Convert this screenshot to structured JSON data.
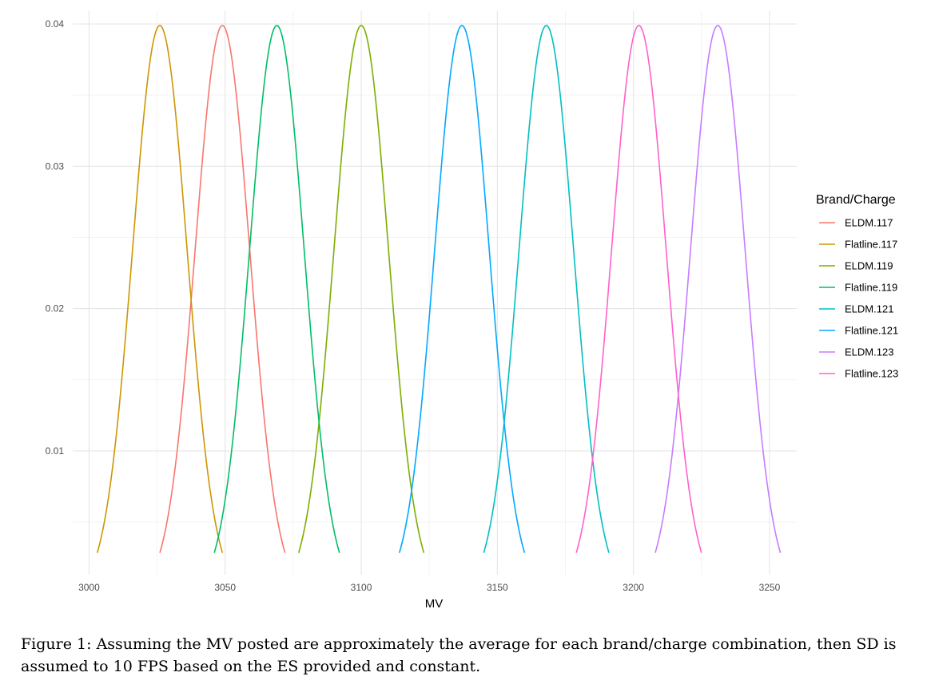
{
  "chart_data": {
    "type": "line",
    "title": "",
    "xlabel": "MV",
    "ylabel": "",
    "xlim": [
      2994,
      3260
    ],
    "ylim": [
      0.0013,
      0.0409
    ],
    "x_ticks": [
      3000,
      3050,
      3100,
      3150,
      3200,
      3250
    ],
    "y_ticks": [
      0.01,
      0.02,
      0.03,
      0.04
    ],
    "x_tick_labels": [
      "3000",
      "3050",
      "3100",
      "3150",
      "3200",
      "3250"
    ],
    "y_tick_labels": [
      "0.01",
      "0.02",
      "0.03",
      "0.04"
    ],
    "grid": true,
    "legend_title": "Brand/Charge",
    "legend_position": "right",
    "sd": 10,
    "series": [
      {
        "name": "ELDM.117",
        "mean": 3049,
        "color": "#F8766D"
      },
      {
        "name": "Flatline.117",
        "mean": 3026,
        "color": "#CD9600"
      },
      {
        "name": "ELDM.119",
        "mean": 3100,
        "color": "#7CAE00"
      },
      {
        "name": "Flatline.119",
        "mean": 3069,
        "color": "#00BE67"
      },
      {
        "name": "ELDM.121",
        "mean": 3168,
        "color": "#00BFC4"
      },
      {
        "name": "Flatline.121",
        "mean": 3137,
        "color": "#00A9FF"
      },
      {
        "name": "ELDM.123",
        "mean": 3231,
        "color": "#C77CFF"
      },
      {
        "name": "Flatline.123",
        "mean": 3202,
        "color": "#FF61CC"
      }
    ]
  },
  "caption": {
    "label": "Figure 1:",
    "text": "Assuming the MV posted are approximately the average for each brand/charge combination, then SD is assumed to 10 FPS based on the ES provided and constant."
  }
}
